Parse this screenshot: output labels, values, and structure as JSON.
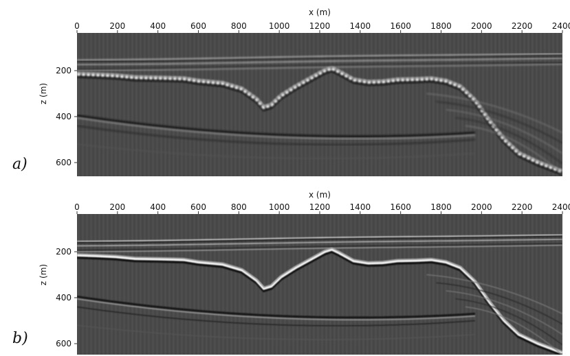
{
  "panels": [
    {
      "letter": "a)",
      "xlabel": "x (m)",
      "ylabel": "z (m)",
      "xticks": [
        "0",
        "200",
        "400",
        "600",
        "800",
        "1000",
        "1200",
        "1400",
        "1600",
        "1800",
        "2000",
        "2200",
        "2400"
      ],
      "yticks": [
        "200",
        "400",
        "600"
      ]
    },
    {
      "letter": "b)",
      "xlabel": "x (m)",
      "ylabel": "z (m)",
      "xticks": [
        "0",
        "200",
        "400",
        "600",
        "800",
        "1000",
        "1200",
        "1400",
        "1600",
        "1800",
        "2000",
        "2200",
        "2400"
      ],
      "yticks": [
        "200",
        "400",
        "600"
      ]
    }
  ],
  "colors": {
    "image_background": "#4a4a4a",
    "reflector_bright": "#f2f2f2",
    "reflector_dark": "#151515"
  }
}
